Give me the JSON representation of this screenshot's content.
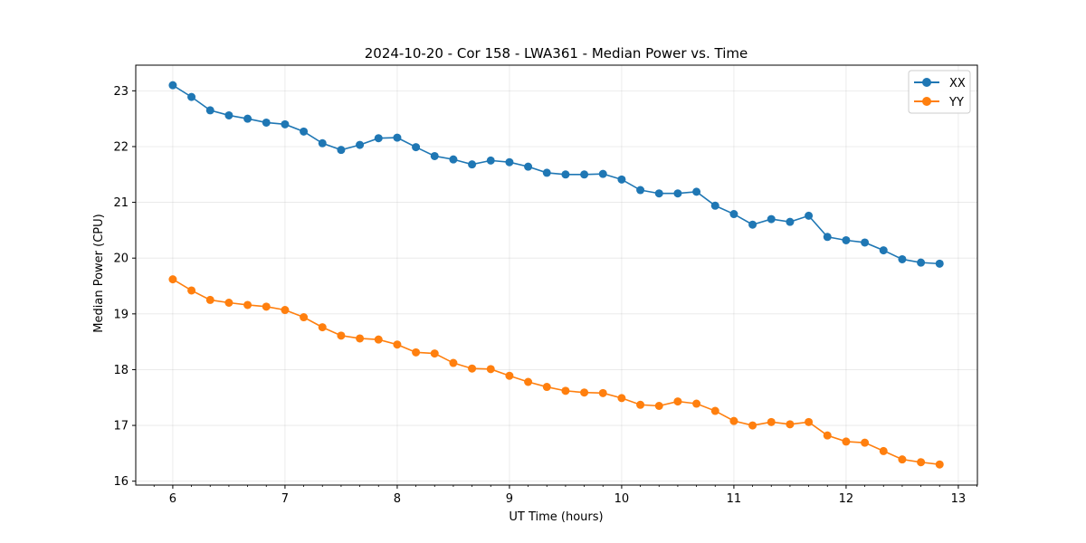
{
  "chart_data": {
    "type": "line",
    "title": "2024-10-20 - Cor 158 - LWA361 - Median Power vs. Time",
    "xlabel": "UT Time (hours)",
    "ylabel": "Median Power (CPU)",
    "xlim": [
      5.67,
      13.17
    ],
    "ylim": [
      15.93,
      23.46
    ],
    "xticks": [
      6,
      7,
      8,
      9,
      10,
      11,
      12,
      13
    ],
    "yticks": [
      16,
      17,
      18,
      19,
      20,
      21,
      22,
      23
    ],
    "grid": true,
    "legend_position": "top-right",
    "x": [
      6.0,
      6.1667,
      6.3333,
      6.5,
      6.6667,
      6.8333,
      7.0,
      7.1667,
      7.3333,
      7.5,
      7.6667,
      7.8333,
      8.0,
      8.1667,
      8.3333,
      8.5,
      8.6667,
      8.8333,
      9.0,
      9.1667,
      9.3333,
      9.5,
      9.6667,
      9.8333,
      10.0,
      10.1667,
      10.3333,
      10.5,
      10.6667,
      10.8333,
      11.0,
      11.1667,
      11.3333,
      11.5,
      11.6667,
      11.8333,
      12.0,
      12.1667,
      12.3333,
      12.5,
      12.6667,
      12.8333
    ],
    "series": [
      {
        "name": "XX",
        "color": "#1f77b4",
        "values": [
          23.1,
          22.89,
          22.65,
          22.56,
          22.5,
          22.43,
          22.4,
          22.27,
          22.06,
          21.94,
          22.03,
          22.15,
          22.16,
          21.99,
          21.83,
          21.77,
          21.68,
          21.75,
          21.72,
          21.64,
          21.53,
          21.5,
          21.5,
          21.51,
          21.41,
          21.22,
          21.16,
          21.16,
          21.19,
          20.94,
          20.79,
          20.6,
          20.7,
          20.65,
          20.76,
          20.38,
          20.32,
          20.28,
          20.14,
          19.98,
          19.92,
          19.9
        ]
      },
      {
        "name": "YY",
        "color": "#ff7f0e",
        "values": [
          19.62,
          19.42,
          19.25,
          19.2,
          19.16,
          19.13,
          19.07,
          18.94,
          18.76,
          18.61,
          18.56,
          18.54,
          18.45,
          18.31,
          18.29,
          18.12,
          18.02,
          18.01,
          17.89,
          17.78,
          17.69,
          17.62,
          17.59,
          17.58,
          17.49,
          17.37,
          17.35,
          17.43,
          17.39,
          17.26,
          17.08,
          17.0,
          17.06,
          17.02,
          17.06,
          16.82,
          16.71,
          16.69,
          16.54,
          16.39,
          16.34,
          16.3
        ]
      }
    ]
  }
}
